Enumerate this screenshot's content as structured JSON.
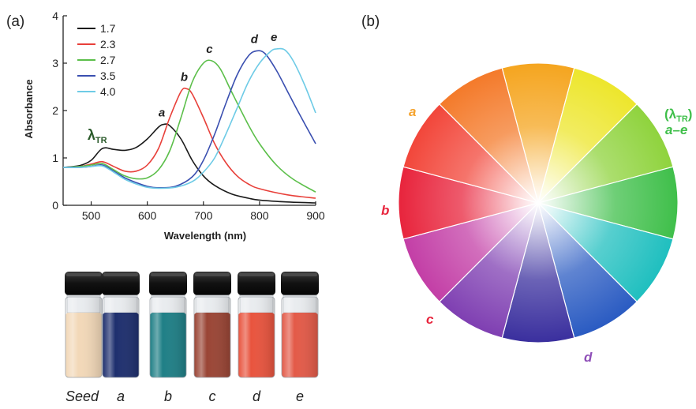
{
  "panel_labels": {
    "a": "(a)",
    "b": "(b)"
  },
  "chart_data": {
    "type": "line",
    "xlabel": "Wavelength (nm)",
    "ylabel": "Absorbance",
    "xlim": [
      450,
      900
    ],
    "ylim": [
      0,
      4
    ],
    "xticks": [
      500,
      600,
      700,
      800,
      900
    ],
    "yticks": [
      0,
      1,
      2,
      3,
      4
    ],
    "legend_placement": "top-left",
    "series": [
      {
        "name": "1.7",
        "peak_label": "a",
        "color": "#1a1a1a",
        "x": [
          450,
          480,
          500,
          520,
          540,
          560,
          580,
          600,
          620,
          630,
          640,
          660,
          680,
          700,
          720,
          750,
          780,
          800,
          850,
          900
        ],
        "y": [
          0.8,
          0.84,
          0.95,
          1.2,
          1.18,
          1.16,
          1.22,
          1.4,
          1.65,
          1.71,
          1.68,
          1.4,
          0.95,
          0.62,
          0.42,
          0.24,
          0.15,
          0.11,
          0.07,
          0.05
        ]
      },
      {
        "name": "2.3",
        "peak_label": "b",
        "color": "#e8403a",
        "x": [
          450,
          480,
          500,
          520,
          540,
          560,
          580,
          600,
          620,
          640,
          660,
          670,
          680,
          700,
          720,
          740,
          760,
          780,
          800,
          850,
          900
        ],
        "y": [
          0.8,
          0.82,
          0.87,
          0.92,
          0.82,
          0.72,
          0.72,
          0.85,
          1.2,
          1.85,
          2.4,
          2.46,
          2.35,
          1.85,
          1.3,
          0.9,
          0.62,
          0.45,
          0.35,
          0.22,
          0.15
        ]
      },
      {
        "name": "2.7",
        "peak_label": "c",
        "color": "#5cbf4a",
        "x": [
          450,
          480,
          500,
          520,
          540,
          560,
          580,
          600,
          620,
          640,
          660,
          680,
          700,
          715,
          730,
          750,
          780,
          800,
          830,
          860,
          900
        ],
        "y": [
          0.8,
          0.82,
          0.85,
          0.88,
          0.75,
          0.62,
          0.56,
          0.58,
          0.75,
          1.15,
          1.85,
          2.6,
          3.0,
          3.05,
          2.88,
          2.4,
          1.7,
          1.3,
          0.85,
          0.55,
          0.28
        ]
      },
      {
        "name": "3.5",
        "peak_label": "d",
        "color": "#3a4fb0",
        "x": [
          450,
          480,
          500,
          520,
          540,
          560,
          580,
          600,
          620,
          650,
          680,
          700,
          720,
          740,
          760,
          780,
          795,
          810,
          830,
          850,
          870,
          900
        ],
        "y": [
          0.8,
          0.8,
          0.82,
          0.85,
          0.72,
          0.58,
          0.48,
          0.4,
          0.37,
          0.4,
          0.6,
          0.95,
          1.5,
          2.15,
          2.75,
          3.15,
          3.26,
          3.2,
          2.85,
          2.4,
          1.95,
          1.3
        ]
      },
      {
        "name": "4.0",
        "peak_label": "e",
        "color": "#6ecbe6",
        "x": [
          450,
          480,
          500,
          520,
          540,
          560,
          580,
          600,
          620,
          650,
          680,
          700,
          720,
          740,
          760,
          780,
          800,
          820,
          830,
          845,
          860,
          880,
          900
        ],
        "y": [
          0.8,
          0.8,
          0.82,
          0.83,
          0.7,
          0.55,
          0.45,
          0.38,
          0.36,
          0.38,
          0.5,
          0.7,
          1.0,
          1.5,
          2.05,
          2.6,
          3.0,
          3.25,
          3.3,
          3.28,
          3.05,
          2.55,
          1.95
        ]
      }
    ],
    "annotations": [
      {
        "text": "λ",
        "sub": "TR",
        "x": 530,
        "y": 1.42,
        "color": "#2a5a2a"
      }
    ]
  },
  "vials": {
    "labels": [
      "Seed",
      "a",
      "b",
      "c",
      "d",
      "e"
    ],
    "colors": [
      "#f2d8b8",
      "#1e2f6e",
      "#1f7f86",
      "#9a4535",
      "#e8543e",
      "#e35a48"
    ]
  },
  "color_wheel": {
    "segment_colors": [
      "#f5a51f",
      "#ede62c",
      "#8fd33d",
      "#3fbf4a",
      "#1fbfbf",
      "#2a5bc2",
      "#3a2f9e",
      "#7f3fb2",
      "#c33ea6",
      "#e8243c",
      "#f2463a",
      "#f47a2a"
    ],
    "labels": [
      {
        "id": "a",
        "text": "a",
        "color": "#f5a32e"
      },
      {
        "id": "b",
        "text": "b",
        "color": "#e8243c"
      },
      {
        "id": "c",
        "text": "c",
        "color": "#e8243c"
      },
      {
        "id": "d",
        "text": "d",
        "color": "#8f4fb8"
      },
      {
        "id": "tr",
        "text_lambda": "(λ",
        "sub": "TR",
        "close": ")",
        "range": "a–e",
        "color": "#3fbf4a"
      }
    ]
  }
}
